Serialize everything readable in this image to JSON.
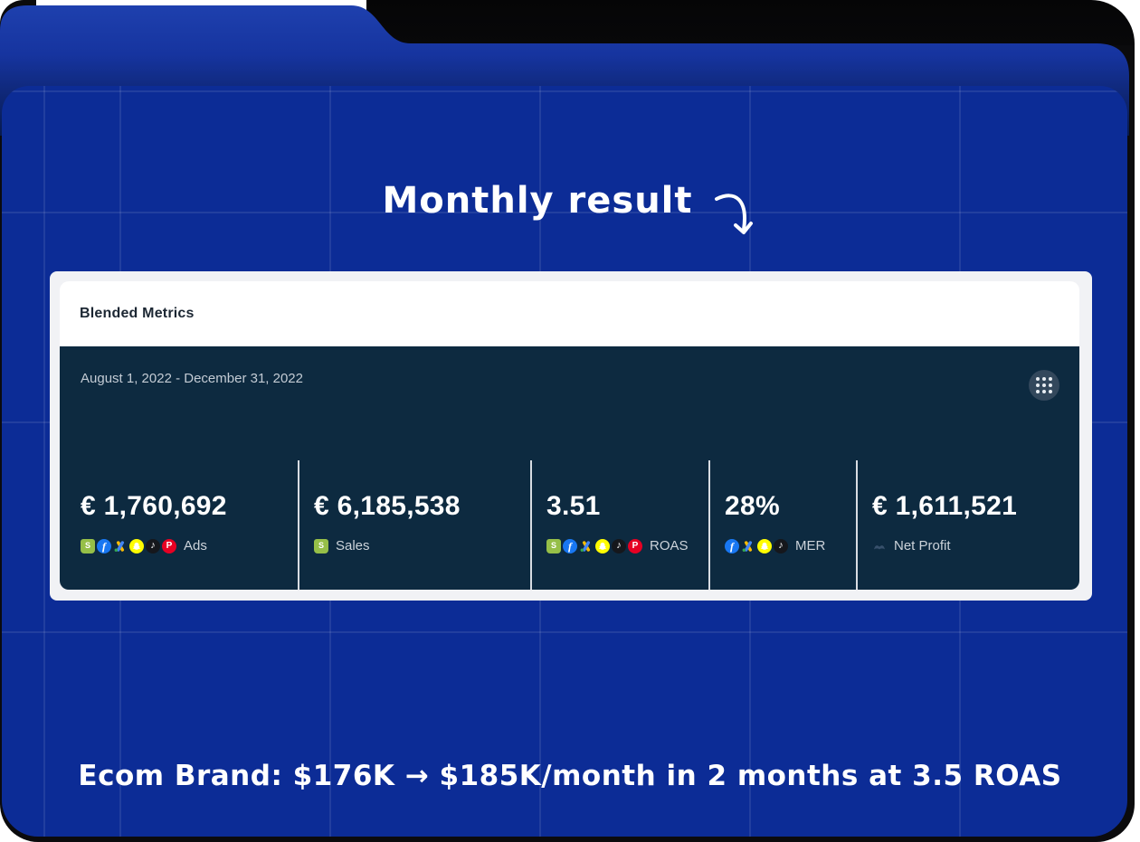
{
  "annotations": {
    "title": "Monthly result",
    "caption": "Ecom Brand: $176K → $185K/month in 2 months at 3.5 ROAS"
  },
  "card": {
    "title": "Blended Metrics",
    "date_range": "August 1, 2022 - December 31, 2022",
    "apps_button_icon": "grid-dots",
    "metrics": [
      {
        "value": "€ 1,760,692",
        "label": "Ads",
        "icons": [
          "shopify-icon",
          "facebook-icon",
          "google-ads-icon",
          "snapchat-icon",
          "tiktok-icon",
          "pinterest-icon"
        ]
      },
      {
        "value": "€ 6,185,538",
        "label": "Sales",
        "icons": [
          "shopify-icon"
        ]
      },
      {
        "value": "3.51",
        "label": "ROAS",
        "icons": [
          "shopify-icon",
          "facebook-icon",
          "google-ads-icon",
          "snapchat-icon",
          "tiktok-icon",
          "pinterest-icon"
        ]
      },
      {
        "value": "28%",
        "label": "MER",
        "icons": [
          "facebook-icon",
          "google-ads-icon",
          "snapchat-icon",
          "tiktok-icon"
        ]
      },
      {
        "value": "€ 1,611,521",
        "label": "Net Profit",
        "icons": [
          "triple-whale-icon"
        ]
      }
    ]
  },
  "colors": {
    "background_blue": "#0c2c96",
    "folder_back_top": "#1e40ae",
    "folder_shadow": "#0b0b0d",
    "panel_dark_navy": "#0d2a40",
    "card_light": "#f1f2f5",
    "divider": "#d8dce2",
    "text_white": "#ffffff",
    "text_muted": "#c3cbd4"
  }
}
